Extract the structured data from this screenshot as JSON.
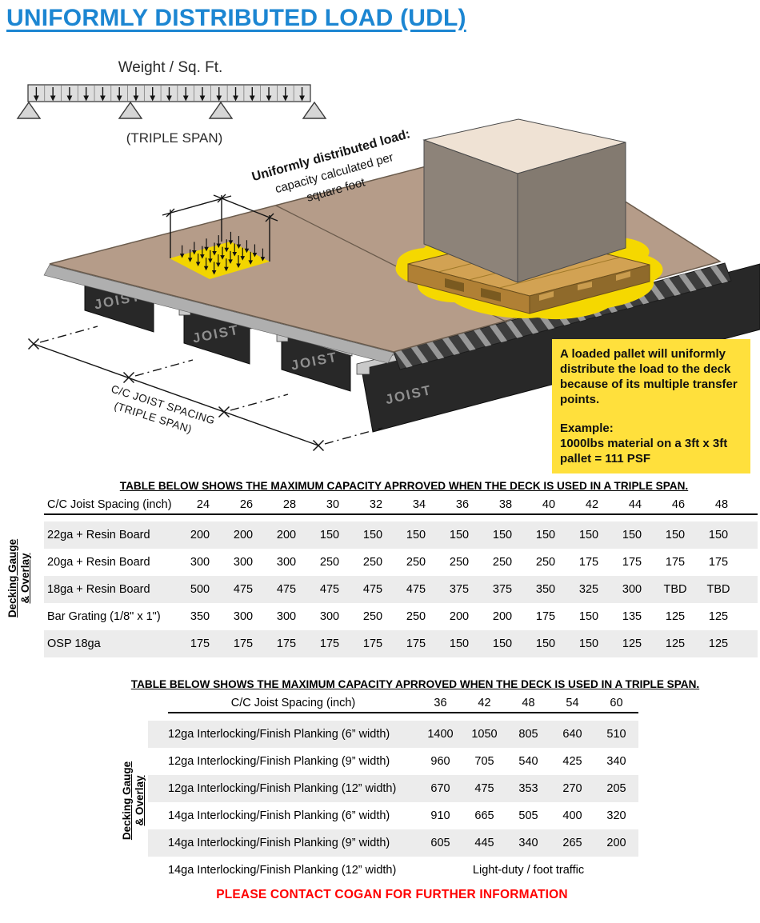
{
  "title": "UNIFORMLY DISTRIBUTED LOAD (UDL)",
  "theme": {
    "title_color": "#1C86D2",
    "callout_bg": "#FFE03C",
    "footer_color": "#FF0000",
    "table_stripe": "#ECECEC",
    "deck_color": "#B59C89",
    "highlight_yellow": "#F5D800"
  },
  "beam_diagram": {
    "load_label": "Weight / Sq. Ft.",
    "span_label": "(TRIPLE SPAN)"
  },
  "illustration": {
    "annotation_line1": "Uniformly distributed load:",
    "annotation_line2": "capacity calculated per",
    "annotation_line3": "square foot",
    "joist_label": "JOIST",
    "spacing_label_line1": "C/C JOIST SPACING",
    "spacing_label_line2": "(TRIPLE SPAN)"
  },
  "callout": {
    "body": "A loaded pallet will uniformly distribute the load to the deck because of its multiple transfer points.",
    "example_label": "Example:",
    "example_line1": "1000lbs material on a 3ft x 3ft",
    "example_line2": "pallet = 111 PSF"
  },
  "table1": {
    "title": "TABLE BELOW SHOWS THE MAXIMUM CAPACITY APRROVED WHEN THE DECK IS USED IN A TRIPLE SPAN.",
    "side_label_line1": "Decking Gauge",
    "side_label_line2": "& Overlay",
    "header_label": "C/C Joist Spacing (inch)",
    "columns": [
      "24",
      "26",
      "28",
      "30",
      "32",
      "34",
      "36",
      "38",
      "40",
      "42",
      "44",
      "46",
      "48"
    ],
    "rows": [
      {
        "label": "22ga + Resin Board",
        "shaded": true,
        "values": [
          "200",
          "200",
          "200",
          "150",
          "150",
          "150",
          "150",
          "150",
          "150",
          "150",
          "150",
          "150",
          "150"
        ]
      },
      {
        "label": "20ga + Resin Board",
        "shaded": false,
        "values": [
          "300",
          "300",
          "300",
          "250",
          "250",
          "250",
          "250",
          "250",
          "250",
          "175",
          "175",
          "175",
          "175"
        ]
      },
      {
        "label": "18ga + Resin Board",
        "shaded": true,
        "values": [
          "500",
          "475",
          "475",
          "475",
          "475",
          "475",
          "375",
          "375",
          "350",
          "325",
          "300",
          "TBD",
          "TBD"
        ]
      },
      {
        "label": "Bar Grating (1/8\" x 1\")",
        "shaded": false,
        "values": [
          "350",
          "300",
          "300",
          "300",
          "250",
          "250",
          "200",
          "200",
          "175",
          "150",
          "135",
          "125",
          "125"
        ]
      },
      {
        "label": "OSP 18ga",
        "shaded": true,
        "values": [
          "175",
          "175",
          "175",
          "175",
          "175",
          "175",
          "150",
          "150",
          "150",
          "150",
          "125",
          "125",
          "125"
        ]
      }
    ]
  },
  "table2": {
    "title": "TABLE BELOW SHOWS THE MAXIMUM CAPACITY APRROVED WHEN THE DECK IS USED IN A TRIPLE SPAN.",
    "side_label_line1": "Decking Gauge",
    "side_label_line2": "& Overlay",
    "header_label": "C/C Joist Spacing (inch)",
    "columns": [
      "36",
      "42",
      "48",
      "54",
      "60"
    ],
    "rows": [
      {
        "label": "12ga Interlocking/Finish Planking (6” width)",
        "shaded": true,
        "values": [
          "1400",
          "1050",
          "805",
          "640",
          "510"
        ]
      },
      {
        "label": "12ga Interlocking/Finish Planking (9” width)",
        "shaded": false,
        "values": [
          "960",
          "705",
          "540",
          "425",
          "340"
        ]
      },
      {
        "label": "12ga Interlocking/Finish Planking (12” width)",
        "shaded": true,
        "values": [
          "670",
          "475",
          "353",
          "270",
          "205"
        ]
      },
      {
        "label": "14ga Interlocking/Finish Planking (6” width)",
        "shaded": false,
        "values": [
          "910",
          "665",
          "505",
          "400",
          "320"
        ]
      },
      {
        "label": "14ga Interlocking/Finish Planking (9” width)",
        "shaded": true,
        "values": [
          "605",
          "445",
          "340",
          "265",
          "200"
        ]
      },
      {
        "label": "14ga Interlocking/Finish Planking (12” width)",
        "shaded": false,
        "merged": "Light-duty / foot traffic"
      }
    ]
  },
  "footer": {
    "text": "PLEASE CONTACT COGAN FOR FURTHER INFORMATION"
  }
}
